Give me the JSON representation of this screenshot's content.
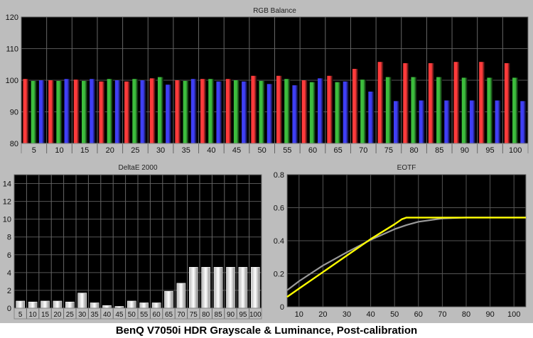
{
  "caption": "BenQ V7050i HDR Grayscale & Luminance, Post-calibration",
  "chart_data": [
    {
      "type": "bar",
      "title": "RGB Balance",
      "categories": [
        "5",
        "10",
        "15",
        "20",
        "25",
        "30",
        "35",
        "40",
        "45",
        "50",
        "55",
        "60",
        "65",
        "70",
        "75",
        "80",
        "85",
        "90",
        "95",
        "100"
      ],
      "ylim": [
        80,
        120
      ],
      "yticks": [
        "80",
        "90",
        "100",
        "110",
        "120"
      ],
      "grid": true,
      "series": [
        {
          "color": "#ff3b3b",
          "values": [
            100.4,
            100.0,
            100.2,
            99.6,
            99.6,
            100.6,
            100.0,
            100.4,
            100.4,
            101.4,
            101.4,
            100.0,
            101.4,
            103.6,
            105.8,
            105.4,
            105.4,
            105.8,
            105.8,
            105.4
          ]
        },
        {
          "color": "#3dbd3d",
          "values": [
            99.8,
            99.8,
            99.8,
            100.4,
            100.4,
            101.0,
            99.8,
            100.4,
            100.0,
            99.8,
            100.4,
            99.4,
            99.4,
            100.2,
            101.0,
            101.0,
            101.0,
            100.8,
            100.8,
            100.8
          ]
        },
        {
          "color": "#3f3ff5",
          "values": [
            100.0,
            100.4,
            100.4,
            100.0,
            100.0,
            98.6,
            100.4,
            99.6,
            99.6,
            98.8,
            98.4,
            100.6,
            99.6,
            96.4,
            93.4,
            93.6,
            93.6,
            93.6,
            93.6,
            93.4
          ]
        }
      ]
    },
    {
      "type": "bar",
      "title": "DeltaE 2000",
      "categories": [
        "5",
        "10",
        "15",
        "20",
        "25",
        "30",
        "35",
        "40",
        "45",
        "50",
        "55",
        "60",
        "65",
        "70",
        "75",
        "80",
        "85",
        "90",
        "95",
        "100"
      ],
      "values": [
        0.8,
        0.7,
        0.8,
        0.8,
        0.7,
        1.7,
        0.6,
        0.3,
        0.2,
        0.8,
        0.6,
        0.6,
        1.9,
        2.8,
        4.6,
        4.6,
        4.6,
        4.6,
        4.6,
        4.6
      ],
      "ylim": [
        0,
        15
      ],
      "yticks": [
        "0",
        "2",
        "4",
        "6",
        "8",
        "10",
        "12",
        "14"
      ],
      "grid": true
    },
    {
      "type": "line",
      "title": "EOTF",
      "xlim": [
        5,
        105
      ],
      "ylim": [
        0,
        0.8
      ],
      "xticks": [
        "10",
        "20",
        "30",
        "40",
        "50",
        "60",
        "70",
        "80",
        "90",
        "100"
      ],
      "yticks": [
        "0",
        "0.2",
        "0.4",
        "0.6",
        "0.8"
      ],
      "grid": true,
      "series": [
        {
          "color": "#9a9a9a",
          "x": [
            5,
            10,
            20,
            30,
            40,
            50,
            55,
            60,
            70,
            80,
            90,
            100,
            105
          ],
          "y": [
            0.1,
            0.155,
            0.25,
            0.33,
            0.405,
            0.47,
            0.495,
            0.515,
            0.535,
            0.54,
            0.54,
            0.54,
            0.54
          ]
        },
        {
          "color": "#ffff00",
          "x": [
            5,
            10,
            20,
            30,
            40,
            50,
            53,
            55,
            60,
            70,
            80,
            90,
            100,
            105
          ],
          "y": [
            0.06,
            0.11,
            0.21,
            0.31,
            0.41,
            0.5,
            0.53,
            0.54,
            0.54,
            0.54,
            0.54,
            0.54,
            0.54,
            0.54
          ]
        }
      ]
    }
  ]
}
